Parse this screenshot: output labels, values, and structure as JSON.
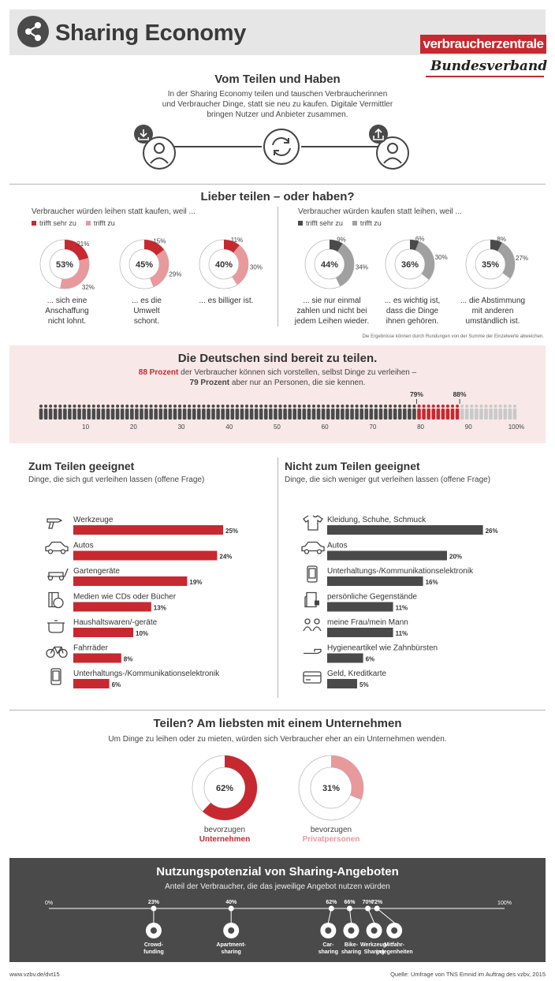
{
  "header": {
    "title": "Sharing Economy",
    "logo_main": "verbraucherzentrale",
    "logo_sub": "Bundesverband"
  },
  "colors": {
    "red": "#c8282f",
    "light_red": "#e8999c",
    "dark": "#4a4a4a",
    "gray": "#a0a0a0"
  },
  "intro": {
    "title": "Vom Teilen und Haben",
    "text1": "In der Sharing Economy teilen und tauschen Verbraucherinnen",
    "text2": "und Verbraucher Dinge, statt sie neu zu kaufen. Digitale Vermittler",
    "text3": "bringen Nutzer und Anbieter zusammen."
  },
  "teilen": {
    "title": "Lieber teilen – oder haben?",
    "left_lead": "Verbraucher würden leihen statt kaufen, weil ...",
    "right_lead": "Verbraucher würden kaufen statt leihen, weil ...",
    "legend_strong": "trifft sehr zu",
    "legend_weak": "trifft zu",
    "note": "Die Ergebnisse können durch Rundungen von der Summe der Einzelwerte abweichen."
  },
  "chart_data": [
    {
      "type": "pie",
      "title": "Lieber teilen – oder haben?",
      "series": [
        {
          "total": "53%",
          "values": [
            21,
            32
          ],
          "caption": [
            "... sich eine",
            "Anschaffung",
            "nicht lohnt."
          ],
          "p1": "21%",
          "p2": "32%"
        },
        {
          "total": "45%",
          "values": [
            15,
            29
          ],
          "caption": [
            "... es die",
            "Umwelt",
            "schont."
          ],
          "p1": "15%",
          "p2": "29%"
        },
        {
          "total": "40%",
          "values": [
            11,
            30
          ],
          "caption": [
            "... es billiger ist."
          ],
          "p1": "11%",
          "p2": "30%"
        },
        {
          "total": "44%",
          "values": [
            9,
            34
          ],
          "caption": [
            "... sie nur einmal",
            "zahlen und nicht bei",
            "jedem Leihen wieder."
          ],
          "p1": "9%",
          "p2": "34%"
        },
        {
          "total": "36%",
          "values": [
            6,
            30
          ],
          "caption": [
            "... es wichtig ist,",
            "dass die Dinge",
            "ihnen gehören."
          ],
          "p1": "6%",
          "p2": "30%"
        },
        {
          "total": "35%",
          "values": [
            8,
            27
          ],
          "caption": [
            "... die Abstimmung",
            "mit anderen",
            "umständlich ist."
          ],
          "p1": "8%",
          "p2": "27%"
        }
      ]
    },
    {
      "type": "bar",
      "title": "Die Deutschen sind bereit zu teilen.",
      "values": [
        79,
        88
      ],
      "markers": [
        "79%",
        "88%"
      ],
      "ticks": [
        "10",
        "20",
        "30",
        "40",
        "50",
        "60",
        "70",
        "80",
        "90",
        "100%"
      ]
    },
    {
      "type": "bar",
      "title": "Zum Teilen geeignet",
      "categories": [
        "Werkzeuge",
        "Autos",
        "Gartengeräte",
        "Medien wie CDs oder Bücher",
        "Haushaltswaren/-geräte",
        "Fahrräder",
        "Unterhaltungs-/Kommunikationselektronik"
      ],
      "values": [
        25,
        24,
        19,
        13,
        10,
        8,
        6
      ],
      "labels": [
        "25%",
        "24%",
        "19%",
        "13%",
        "10%",
        "8%",
        "6%"
      ]
    },
    {
      "type": "bar",
      "title": "Nicht zum Teilen geeignet",
      "categories": [
        "Kleidung, Schuhe, Schmuck",
        "Autos",
        "Unterhaltungs-/Kommunikationselektronik",
        "persönliche Gegenstände",
        "meine Frau/mein Mann",
        "Hygieneartikel wie Zahnbürsten",
        "Geld, Kreditkarte"
      ],
      "values": [
        26,
        20,
        16,
        11,
        11,
        6,
        5
      ],
      "labels": [
        "26%",
        "20%",
        "16%",
        "11%",
        "11%",
        "6%",
        "5%"
      ]
    },
    {
      "type": "pie",
      "title": "Teilen? Am liebsten mit einem Unternehmen",
      "series": [
        {
          "name": "Unternehmen",
          "values": [
            62
          ],
          "label": "62%"
        },
        {
          "name": "Privatpersonen",
          "values": [
            31
          ],
          "label": "31%"
        }
      ]
    },
    {
      "type": "scatter",
      "title": "Nutzungspotenzial von Sharing-Angeboten",
      "x": [
        23,
        40,
        62,
        66,
        70,
        72
      ],
      "labels": [
        "23%",
        "40%",
        "62%",
        "66%",
        "70%",
        "72%"
      ],
      "categories": [
        [
          "Crowd-",
          "funding"
        ],
        [
          "Apartment-",
          "sharing"
        ],
        [
          "Car-",
          "sharing"
        ],
        [
          "Bike-",
          "sharing"
        ],
        [
          "Werkzeug-",
          "Sharing"
        ],
        [
          "Mitfahr-",
          "gelegenheiten"
        ]
      ],
      "xlim": [
        0,
        100
      ],
      "axis_labels": [
        "0%",
        "100%"
      ]
    }
  ],
  "bereit": {
    "title": "Die Deutschen sind bereit zu teilen.",
    "line1_bold": "88 Prozent",
    "line1_rest": " der Verbraucher können sich vorstellen, selbst Dinge zu verleihen –",
    "line2_bold": "79 Prozent",
    "line2_rest": " aber nur an Personen, die sie kennen."
  },
  "geeignet": {
    "left_title": "Zum Teilen geeignet",
    "left_sub": "Dinge, die sich gut verleihen lassen (offene Frage)",
    "right_title": "Nicht zum Teilen geeignet",
    "right_sub": "Dinge, die sich weniger gut verleihen lassen (offene Frage)",
    "left_icons": [
      "drill-icon",
      "car-icon",
      "lawnmower-icon",
      "media-icon",
      "pot-icon",
      "bicycle-icon",
      "phone-icon"
    ],
    "right_icons": [
      "shirt-icon",
      "car-icon",
      "phone-icon",
      "personal-items-icon",
      "couple-icon",
      "toothbrush-icon",
      "creditcard-icon"
    ]
  },
  "unternehmen": {
    "title": "Teilen? Am liebsten mit einem Unternehmen",
    "sub": "Um Dinge zu leihen oder zu mieten, würden sich Verbraucher eher an ein Unternehmen wenden.",
    "left_pre": "bevorzugen",
    "left_name": "Unternehmen",
    "right_pre": "bevorzugen",
    "right_name": "Privatpersonen"
  },
  "potenzial": {
    "title": "Nutzungspotenzial von Sharing-Angeboten",
    "sub": "Anteil der Verbraucher, die das jeweilige Angebot nutzen würden",
    "icons": [
      "euro-icon",
      "house-icon",
      "car-icon",
      "bike-icon",
      "hammer-icon",
      "carpool-icon"
    ]
  },
  "footer": {
    "left": "www.vzbv.de/dvt15",
    "right": "Quelle: Umfrage von TNS Emnid im Auftrag des vzbv, 2015"
  }
}
